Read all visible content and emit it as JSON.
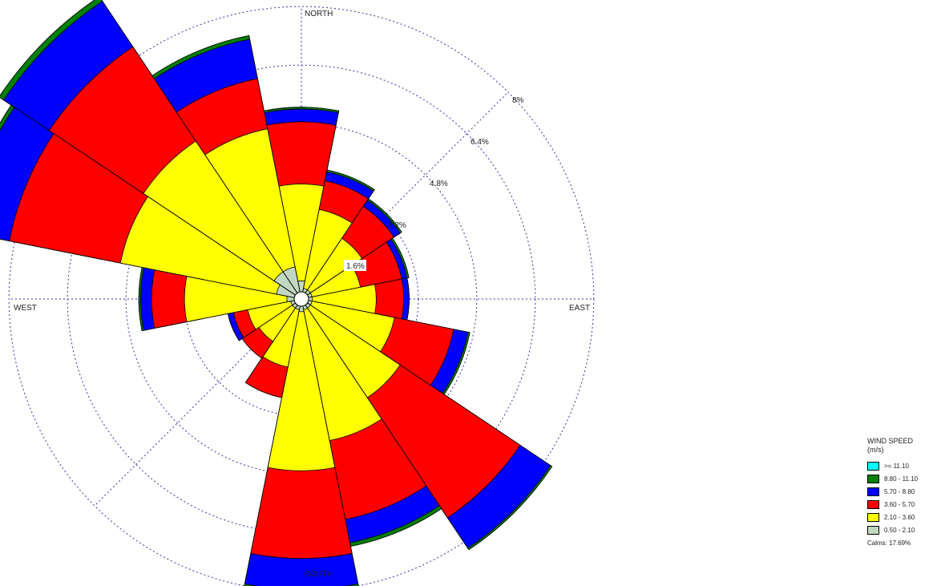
{
  "chart_data": {
    "type": "wind-rose",
    "direction_labels": {
      "north": "NORTH",
      "east": "EAST",
      "south": "SOUTH",
      "west": "WEST"
    },
    "radial_axis": {
      "unit": "%",
      "ticks": [
        1.6,
        3.2,
        4.8,
        6.4,
        8.0
      ],
      "tick_labels": [
        "1.6%",
        "3.2%",
        "4.8%",
        "6.4%",
        "8%"
      ],
      "max": 8.0,
      "grid": true
    },
    "legend": {
      "title": "WIND SPEED",
      "unit": "(m/s)",
      "position": "bottom-right",
      "bins": [
        {
          "label": ">= 11.10",
          "color": "#00ffff"
        },
        {
          "label": "8.80 - 11.10",
          "color": "#008000"
        },
        {
          "label": "5.70 - 8.80",
          "color": "#0000ff"
        },
        {
          "label": "3.60 - 5.70",
          "color": "#ff0000"
        },
        {
          "label": "2.10 - 3.60",
          "color": "#ffff00"
        },
        {
          "label": "0.50 - 2.10",
          "color": "#c0d8c0"
        }
      ]
    },
    "calms_text": "Calms: 17.69%",
    "sector_width_deg": 22.5,
    "directions_deg": [
      0,
      22.5,
      45,
      67.5,
      90,
      112.5,
      135,
      157.5,
      180,
      202.5,
      225,
      247.5,
      270,
      292.5,
      315,
      337.5
    ],
    "cumulative_percent_by_direction": [
      [
        0.3,
        2.95,
        4.65,
        5.0,
        5.05,
        5.05
      ],
      [
        0.1,
        2.3,
        3.1,
        3.35,
        3.4,
        3.4
      ],
      [
        0.1,
        1.8,
        2.85,
        3.05,
        3.1,
        3.1
      ],
      [
        0.1,
        1.45,
        2.6,
        2.75,
        2.8,
        2.8
      ],
      [
        0.1,
        1.85,
        2.6,
        2.75,
        2.75,
        2.75
      ],
      [
        0.1,
        2.4,
        4.05,
        4.45,
        4.5,
        4.5
      ],
      [
        0.1,
        3.05,
        7.0,
        8.0,
        8.05,
        8.05
      ],
      [
        0.1,
        3.75,
        5.95,
        6.6,
        6.7,
        6.7
      ],
      [
        0.15,
        4.5,
        6.9,
        7.75,
        7.85,
        7.85
      ],
      [
        0.1,
        1.7,
        2.55,
        2.55,
        2.55,
        2.55
      ],
      [
        0.1,
        1.2,
        1.75,
        1.75,
        1.75,
        1.75
      ],
      [
        0.1,
        1.3,
        1.7,
        1.85,
        1.85,
        1.85
      ],
      [
        0.2,
        3.0,
        3.9,
        4.2,
        4.25,
        4.25
      ],
      [
        0.5,
        4.85,
        7.95,
        9.25,
        9.35,
        9.35
      ],
      [
        0.7,
        5.0,
        8.1,
        9.6,
        9.75,
        9.75
      ],
      [
        0.7,
        4.55,
        5.95,
        7.05,
        7.15,
        7.15
      ]
    ]
  }
}
